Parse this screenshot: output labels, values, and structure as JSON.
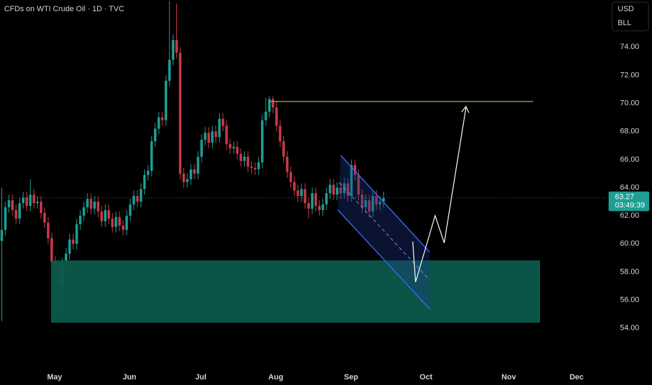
{
  "chart_data": {
    "type": "candlestick",
    "title": "CFDs on WTI Crude Oil · 1D · TVC",
    "currency": "USD",
    "unit_button": "BLL",
    "countdown": "03:49:39",
    "up_color": "#1e9e94",
    "down_color": "#c93a47",
    "background": "#000000",
    "grid": false,
    "xlim": [
      -0.5,
      169.5
    ],
    "ylim": [
      51.45,
      77.35
    ],
    "xticks": [
      {
        "value": 14.8,
        "label": "May"
      },
      {
        "value": 35.8,
        "label": "Jun"
      },
      {
        "value": 55.8,
        "label": "Jul"
      },
      {
        "value": 76.8,
        "label": "Aug"
      },
      {
        "value": 97.9,
        "label": "Sep"
      },
      {
        "value": 118.9,
        "label": "Oct"
      },
      {
        "value": 142.1,
        "label": "Nov"
      },
      {
        "value": 161.1,
        "label": "Dec"
      }
    ],
    "yticks": [
      {
        "value": 54,
        "label": "54.00"
      },
      {
        "value": 56,
        "label": "56.00"
      },
      {
        "value": 58,
        "label": "58.00"
      },
      {
        "value": 60,
        "label": "60.00"
      },
      {
        "value": 62,
        "label": "62.00"
      },
      {
        "value": 64,
        "label": "64.00"
      },
      {
        "value": 66,
        "label": "66.00"
      },
      {
        "value": 68,
        "label": "68.00"
      },
      {
        "value": 70,
        "label": "70.00"
      },
      {
        "value": 72,
        "label": "72.00"
      },
      {
        "value": 74,
        "label": "74.00"
      }
    ],
    "open": [
      60.2,
      61.0,
      62.6,
      63.1,
      62.4,
      61.8,
      62.9,
      63.3,
      62.7,
      63.5,
      62.9,
      63.0,
      62.2,
      61.5,
      60.4,
      58.7,
      58.2,
      57.0,
      58.6,
      59.3,
      60.3,
      60.0,
      61.4,
      62.0,
      62.6,
      63.2,
      62.5,
      63.0,
      62.3,
      61.6,
      62.4,
      61.8,
      61.2,
      61.9,
      61.3,
      61.0,
      62.0,
      62.8,
      63.4,
      63.0,
      63.9,
      64.9,
      65.2,
      67.3,
      68.2,
      69.0,
      68.8,
      71.6,
      73.1,
      74.5,
      73.6,
      65.0,
      64.4,
      64.6,
      65.3,
      65.0,
      66.2,
      67.4,
      67.9,
      67.2,
      68.0,
      67.6,
      68.9,
      68.4,
      67.1,
      66.8,
      66.9,
      66.4,
      65.9,
      66.2,
      65.5,
      65.4,
      65.3,
      65.8,
      68.8,
      69.4,
      70.3,
      69.7,
      68.4,
      67.3,
      66.2,
      65.1,
      64.4,
      63.8,
      63.4,
      63.9,
      62.9,
      62.5,
      63.6,
      62.7,
      62.4,
      62.8,
      63.6,
      64.2,
      63.5,
      64.0,
      63.6,
      64.3,
      63.4,
      65.6,
      64.9,
      63.5,
      62.6,
      63.1,
      62.3,
      63.4,
      62.8,
      63.0
    ],
    "high": [
      64.0,
      63.0,
      63.5,
      63.5,
      62.8,
      63.3,
      63.7,
      63.7,
      64.6,
      63.9,
      63.4,
      63.4,
      62.6,
      61.9,
      60.8,
      59.1,
      58.6,
      59.0,
      59.7,
      60.7,
      60.7,
      61.8,
      62.4,
      63.0,
      63.6,
      63.6,
      63.4,
      63.4,
      62.7,
      62.8,
      62.8,
      62.2,
      62.3,
      62.3,
      61.7,
      62.4,
      63.2,
      63.8,
      63.8,
      64.3,
      65.3,
      65.6,
      67.7,
      68.6,
      69.4,
      69.4,
      72.0,
      77.3,
      74.9,
      77.1,
      74.0,
      65.4,
      65.0,
      65.7,
      65.7,
      66.6,
      67.8,
      68.3,
      68.3,
      68.4,
      68.4,
      69.3,
      69.3,
      68.8,
      67.5,
      67.3,
      67.3,
      66.8,
      66.6,
      66.6,
      65.9,
      65.8,
      66.2,
      69.2,
      70.4,
      70.5,
      70.5,
      70.1,
      68.8,
      67.7,
      66.6,
      65.5,
      64.8,
      64.2,
      64.3,
      64.3,
      63.3,
      64.0,
      64.0,
      63.1,
      63.2,
      64.0,
      64.6,
      64.6,
      64.4,
      64.4,
      64.7,
      64.7,
      66.0,
      66.0,
      65.3,
      63.9,
      63.5,
      63.5,
      63.8,
      63.8,
      63.4,
      63.7
    ],
    "low": [
      54.5,
      60.6,
      62.2,
      62.0,
      61.4,
      61.4,
      62.5,
      62.3,
      62.3,
      62.5,
      62.5,
      61.8,
      61.1,
      60.0,
      58.3,
      57.8,
      55.4,
      56.6,
      58.2,
      58.9,
      59.6,
      59.6,
      61.0,
      61.6,
      62.2,
      62.1,
      62.1,
      61.9,
      61.2,
      61.2,
      61.4,
      60.8,
      60.8,
      60.9,
      60.6,
      60.6,
      61.6,
      62.4,
      62.6,
      62.6,
      63.5,
      64.5,
      64.8,
      66.9,
      67.8,
      68.4,
      68.4,
      71.2,
      72.7,
      73.2,
      64.6,
      64.0,
      64.0,
      64.2,
      64.6,
      64.6,
      65.8,
      67.0,
      66.8,
      66.8,
      67.2,
      67.2,
      68.0,
      66.7,
      66.4,
      66.4,
      66.0,
      65.5,
      65.5,
      65.1,
      65.0,
      64.9,
      64.9,
      65.4,
      68.4,
      69.0,
      69.3,
      68.0,
      66.9,
      65.8,
      64.7,
      64.0,
      63.4,
      63.0,
      63.0,
      62.5,
      61.8,
      62.1,
      62.3,
      62.0,
      62.0,
      62.4,
      63.2,
      63.1,
      63.1,
      63.2,
      63.2,
      63.0,
      63.0,
      64.5,
      63.1,
      62.2,
      62.2,
      61.9,
      61.9,
      62.4,
      62.4,
      62.6
    ],
    "close": [
      61.0,
      62.6,
      63.1,
      62.4,
      61.8,
      62.9,
      63.3,
      62.7,
      63.5,
      62.9,
      63.0,
      62.2,
      61.5,
      60.4,
      58.7,
      58.2,
      57.0,
      58.6,
      59.3,
      60.3,
      60.0,
      61.4,
      62.0,
      62.6,
      63.2,
      62.5,
      63.0,
      62.3,
      61.6,
      62.4,
      61.8,
      61.2,
      61.9,
      61.3,
      61.0,
      62.0,
      62.8,
      63.4,
      63.0,
      63.9,
      64.9,
      65.2,
      67.3,
      68.2,
      69.0,
      68.8,
      71.6,
      73.1,
      74.5,
      73.6,
      65.0,
      64.4,
      64.6,
      65.3,
      65.0,
      66.2,
      67.4,
      67.9,
      67.2,
      68.0,
      67.6,
      68.9,
      68.4,
      67.1,
      66.8,
      66.9,
      66.4,
      65.9,
      66.2,
      65.5,
      65.4,
      65.3,
      65.8,
      68.8,
      69.4,
      70.3,
      69.7,
      68.4,
      67.3,
      66.2,
      65.1,
      64.4,
      63.8,
      63.4,
      63.9,
      62.9,
      62.5,
      63.6,
      62.7,
      62.4,
      62.8,
      63.6,
      64.2,
      63.5,
      64.0,
      63.6,
      64.3,
      63.4,
      65.6,
      64.9,
      63.5,
      62.6,
      63.1,
      62.3,
      63.4,
      62.8,
      63.0,
      63.27
    ]
  }
}
